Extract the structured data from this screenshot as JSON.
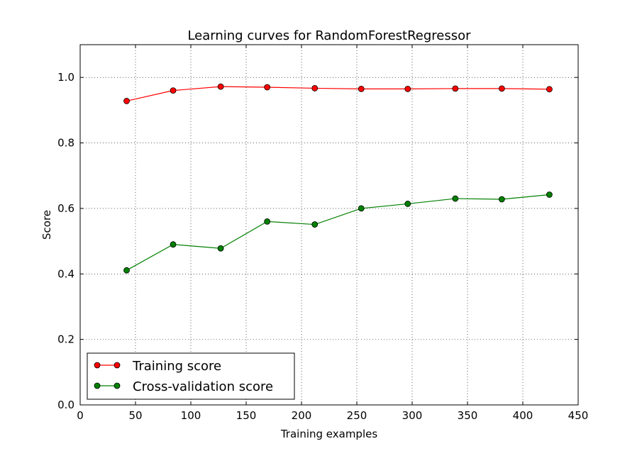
{
  "chart_data": {
    "type": "line",
    "title": "Learning curves for RandomForestRegressor",
    "xlabel": "Training examples",
    "ylabel": "Score",
    "xlim": [
      0,
      450
    ],
    "ylim": [
      0.0,
      1.1
    ],
    "xticks": [
      0,
      50,
      100,
      150,
      200,
      250,
      300,
      350,
      400,
      450
    ],
    "xtick_labels": [
      "0",
      "50",
      "100",
      "150",
      "200",
      "250",
      "300",
      "350",
      "400",
      "450"
    ],
    "yticks": [
      0.0,
      0.2,
      0.4,
      0.6,
      0.8,
      1.0
    ],
    "ytick_labels": [
      "0.0",
      "0.2",
      "0.4",
      "0.6",
      "0.8",
      "1.0"
    ],
    "grid": true,
    "legend_position": "lower-left",
    "x": [
      42,
      84,
      127,
      169,
      212,
      254,
      296,
      339,
      381,
      424
    ],
    "series": [
      {
        "name": "Training score",
        "color": "#ff0000",
        "values": [
          0.928,
          0.96,
          0.972,
          0.97,
          0.967,
          0.965,
          0.965,
          0.966,
          0.966,
          0.964
        ]
      },
      {
        "name": "Cross-validation score",
        "color": "#008000",
        "values": [
          0.411,
          0.49,
          0.478,
          0.56,
          0.551,
          0.6,
          0.614,
          0.63,
          0.628,
          0.642
        ]
      }
    ]
  }
}
